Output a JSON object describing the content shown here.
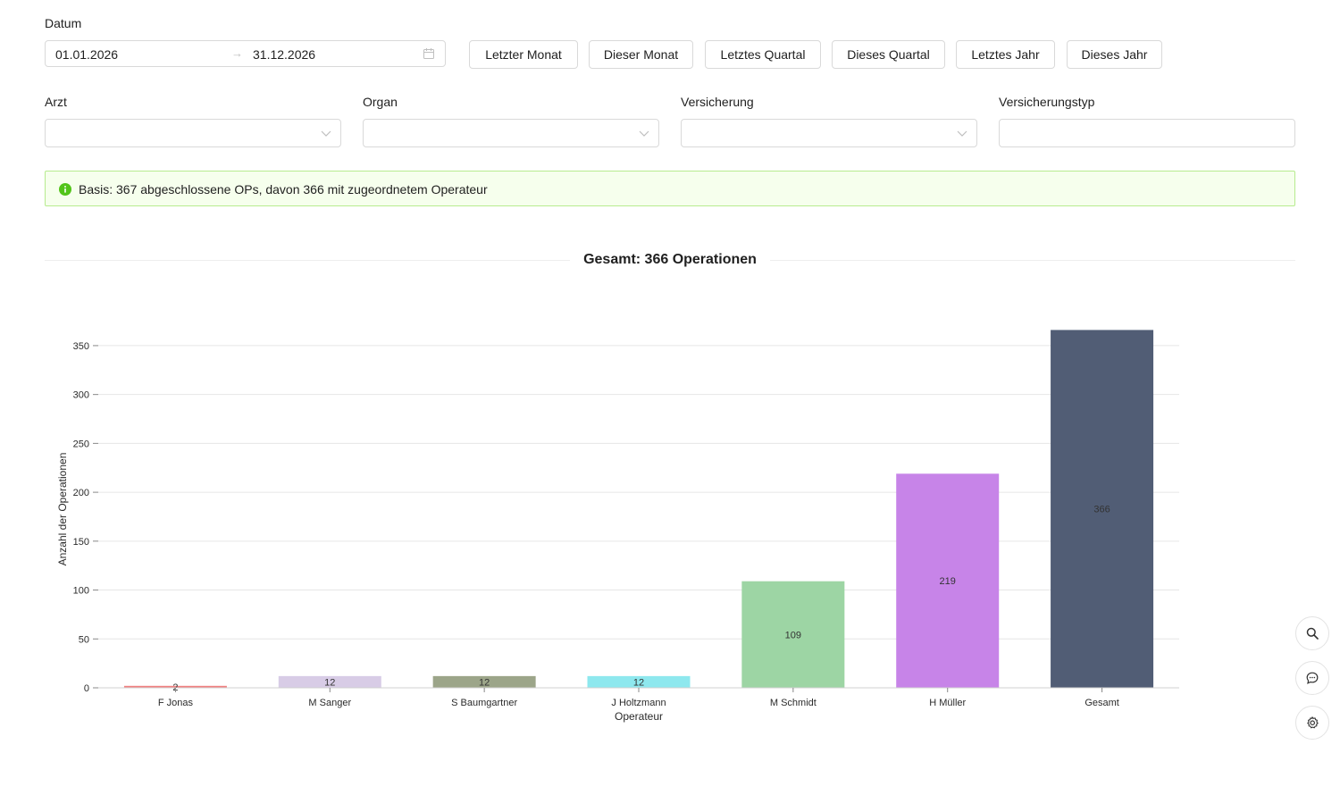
{
  "filters": {
    "date_label": "Datum",
    "date_from": "01.01.2026",
    "date_to": "31.12.2026",
    "range_separator": "→",
    "presets": [
      "Letzter Monat",
      "Dieser Monat",
      "Letztes Quartal",
      "Dieses Quartal",
      "Letztes Jahr",
      "Dieses Jahr"
    ],
    "arzt_label": "Arzt",
    "organ_label": "Organ",
    "versicherung_label": "Versicherung",
    "versicherungstyp_label": "Versicherungstyp"
  },
  "alert": {
    "text": "Basis: 367 abgeschlossene OPs, davon 366 mit zugeordnetem Operateur",
    "color": "#52c41a"
  },
  "section_title": "Gesamt: 366 Operationen",
  "chart_data": {
    "type": "bar",
    "categories": [
      "F Jonas",
      "M Sanger",
      "S Baumgartner",
      "J Holtzmann",
      "M Schmidt",
      "H Müller",
      "Gesamt"
    ],
    "values": [
      2,
      12,
      12,
      12,
      109,
      219,
      366
    ],
    "colors": [
      "#f08080",
      "#d8cce6",
      "#9ca589",
      "#8ee8ee",
      "#9dd5a4",
      "#c784e8",
      "#515d75"
    ],
    "data_labels": [
      "2",
      "12",
      "12",
      "12",
      "109",
      "219",
      "366"
    ],
    "xlabel": "Operateur",
    "ylabel": "Anzahl der Operationen",
    "yticks": [
      "0",
      "50",
      "100",
      "150",
      "200",
      "250",
      "300",
      "350"
    ],
    "ylim": [
      0,
      366
    ],
    "grid": true
  },
  "floating_actions": [
    "search-icon",
    "chat-icon",
    "gear-icon"
  ]
}
